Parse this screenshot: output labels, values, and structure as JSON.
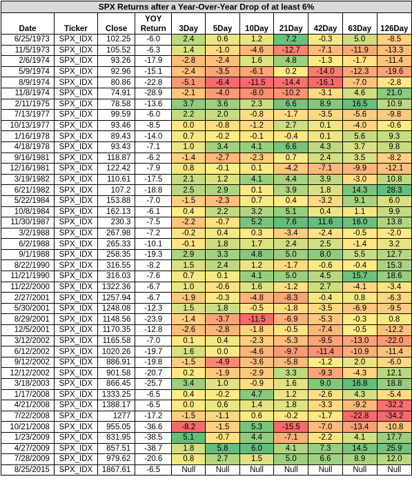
{
  "title": "SPX Returns after a Year-Over-Year Drop of at least 6%",
  "headers": [
    "Date",
    "Ticker",
    "Close",
    "YOY Return",
    "3Day",
    "5Day",
    "10Day",
    "21Day",
    "42Day",
    "63Day",
    "126Day"
  ],
  "rows": [
    [
      "6/25/1973",
      "SPX_IDX",
      "102.25",
      "-6.0",
      "2.4",
      "0.6",
      "1.2",
      "7.2",
      "-0.3",
      "5.0",
      "-8.5"
    ],
    [
      "11/5/1973",
      "SPX_IDX",
      "105.52",
      "-6.3",
      "1.4",
      "-1.0",
      "-4.6",
      "-12.7",
      "-7.1",
      "-11.9",
      "-13.3"
    ],
    [
      "2/6/1974",
      "SPX_IDX",
      "93.26",
      "-17.9",
      "-2.8",
      "-2.4",
      "1.6",
      "4.8",
      "-1.3",
      "-1.7",
      "-11.4"
    ],
    [
      "5/9/1974",
      "SPX_IDX",
      "92.96",
      "-15.1",
      "-2.4",
      "-3.5",
      "-6.1",
      "0.2",
      "-14.0",
      "-12.3",
      "-19.6"
    ],
    [
      "8/9/1974",
      "SPX_IDX",
      "80.86",
      "-22.8",
      "-5.1",
      "-6.4",
      "-11.5",
      "-14.4",
      "-16.1",
      "-7.0",
      "-2.8"
    ],
    [
      "11/8/1974",
      "SPX_IDX",
      "74.91",
      "-28.9",
      "-2.1",
      "-4.0",
      "-8.0",
      "-10.2",
      "-3.1",
      "4.6",
      "21.0"
    ],
    [
      "2/11/1975",
      "SPX_IDX",
      "78.58",
      "-13.6",
      "3.7",
      "3.6",
      "2.3",
      "6.6",
      "8.9",
      "16.5",
      "10.9"
    ],
    [
      "7/13/1977",
      "SPX_IDX",
      "99.59",
      "-6.0",
      "2.2",
      "2.0",
      "-0.8",
      "-1.7",
      "-3.5",
      "-5.6",
      "-9.8"
    ],
    [
      "10/13/1977",
      "SPX_IDX",
      "93.46",
      "-8.5",
      "0.0",
      "-0.8",
      "-1.2",
      "2.7",
      "0.1",
      "-4.0",
      "-0.6"
    ],
    [
      "1/16/1978",
      "SPX_IDX",
      "89.43",
      "-14.0",
      "0.7",
      "-0.2",
      "-0.1",
      "-0.4",
      "0.1",
      "5.6",
      "9.3"
    ],
    [
      "4/18/1978",
      "SPX_IDX",
      "93.43",
      "-7.1",
      "1.0",
      "3.4",
      "4.1",
      "6.6",
      "4.3",
      "3.7",
      "9.8"
    ],
    [
      "9/16/1981",
      "SPX_IDX",
      "118.87",
      "-6.2",
      "-1.4",
      "-2.7",
      "-2.3",
      "0.7",
      "2.4",
      "3.5",
      "-8.2"
    ],
    [
      "12/16/1981",
      "SPX_IDX",
      "122.42",
      "-7.9",
      "0.8",
      "-0.1",
      "0.1",
      "-4.2",
      "-7.1",
      "-9.9",
      "-12.1"
    ],
    [
      "3/19/1982",
      "SPX_IDX",
      "110.61",
      "-17.5",
      "2.1",
      "1.2",
      "4.1",
      "4.4",
      "3.9",
      "-3.0",
      "10.8"
    ],
    [
      "6/21/1982",
      "SPX_IDX",
      "107.2",
      "-18.8",
      "2.5",
      "2.9",
      "0.1",
      "3.9",
      "1.8",
      "14.3",
      "28.3"
    ],
    [
      "5/22/1984",
      "SPX_IDX",
      "153.88",
      "-7.0",
      "-1.5",
      "-2.3",
      "0.7",
      "0.4",
      "-3.2",
      "9.1",
      "6.0"
    ],
    [
      "10/8/1984",
      "SPX_IDX",
      "162.13",
      "-6.1",
      "0.4",
      "2.2",
      "3.2",
      "5.1",
      "0.4",
      "1.1",
      "9.9"
    ],
    [
      "11/30/1987",
      "SPX_IDX",
      "230.3",
      "-7.5",
      "-2.2",
      "-0.7",
      "5.2",
      "7.6",
      "11.6",
      "16.0",
      "13.8"
    ],
    [
      "3/2/1988",
      "SPX_IDX",
      "267.98",
      "-7.2",
      "-0.2",
      "0.4",
      "0.3",
      "-3.4",
      "-2.4",
      "-0.5",
      "-2.0"
    ],
    [
      "6/2/1988",
      "SPX_IDX",
      "265.33",
      "-10.1",
      "-0.1",
      "1.8",
      "1.7",
      "2.4",
      "2.5",
      "-1.4",
      "3.2"
    ],
    [
      "9/1/1988",
      "SPX_IDX",
      "258.35",
      "-19.3",
      "2.9",
      "3.3",
      "4.8",
      "5.0",
      "8.0",
      "5.5",
      "12.7"
    ],
    [
      "8/22/1990",
      "SPX_IDX",
      "316.55",
      "-8.2",
      "1.5",
      "2.4",
      "1.2",
      "-1.7",
      "-0.6",
      "-0.4",
      "15.3"
    ],
    [
      "11/21/1990",
      "SPX_IDX",
      "316.03",
      "-7.6",
      "0.7",
      "0.1",
      "4.1",
      "5.0",
      "4.5",
      "15.7",
      "18.6"
    ],
    [
      "11/22/2000",
      "SPX_IDX",
      "1322.36",
      "-6.7",
      "1.0",
      "-0.6",
      "1.6",
      "-1.2",
      "2.7",
      "-4.1",
      "-3.4"
    ],
    [
      "2/27/2001",
      "SPX_IDX",
      "1257.94",
      "-6.7",
      "-1.9",
      "-0.3",
      "-4.8",
      "-8.3",
      "-0.4",
      "0.8",
      "-6.3"
    ],
    [
      "5/30/2001",
      "SPX_IDX",
      "1248.08",
      "-12.3",
      "1.5",
      "1.8",
      "-0.5",
      "-1.8",
      "-3.5",
      "-6.9",
      "-9.5"
    ],
    [
      "8/29/2001",
      "SPX_IDX",
      "1148.56",
      "-23.9",
      "-1.4",
      "-3.7",
      "-11.5",
      "-6.9",
      "-5.3",
      "-0.3",
      "0.8"
    ],
    [
      "12/5/2001",
      "SPX_IDX",
      "1170.35",
      "-12.8",
      "-2.6",
      "-2.8",
      "-1.8",
      "-0.5",
      "-7.4",
      "-0.5",
      "-12.2"
    ],
    [
      "3/12/2002",
      "SPX_IDX",
      "1165.58",
      "-7.0",
      "0.1",
      "0.4",
      "-2.3",
      "-5.3",
      "-9.5",
      "-13.0",
      "-22.0"
    ],
    [
      "6/12/2002",
      "SPX_IDX",
      "1020.26",
      "-19.7",
      "1.6",
      "0.0",
      "-4.6",
      "-9.7",
      "-11.4",
      "-10.9",
      "-11.4"
    ],
    [
      "9/12/2002",
      "SPX_IDX",
      "886.91",
      "-19.8",
      "-1.5",
      "-4.9",
      "-3.6",
      "-5.8",
      "-1.2",
      "2.0",
      "-6.0"
    ],
    [
      "12/12/2002",
      "SPX_IDX",
      "901.58",
      "-20.7",
      "0.2",
      "-1.9",
      "-2.9",
      "3.3",
      "-9.3",
      "-4.3",
      "12.1"
    ],
    [
      "3/18/2003",
      "SPX_IDX",
      "866.45",
      "-25.7",
      "3.4",
      "1.0",
      "-0.9",
      "1.6",
      "9.0",
      "16.8",
      "18.8"
    ],
    [
      "1/17/2008",
      "SPX_IDX",
      "1333.25",
      "-6.5",
      "0.4",
      "-0.2",
      "4.7",
      "1.2",
      "-2.6",
      "4.3",
      "-5.4"
    ],
    [
      "4/21/2008",
      "SPX_IDX",
      "1388.17",
      "-6.5",
      "0.0",
      "0.6",
      "1.4",
      "1.8",
      "-3.3",
      "-9.2",
      "-32.2"
    ],
    [
      "7/22/2008",
      "SPX_IDX",
      "1277",
      "-17.2",
      "-1.5",
      "-1.1",
      "0.6",
      "-0.2",
      "-1.7",
      "-22.8",
      "-34.2"
    ],
    [
      "10/21/2008",
      "SPX_IDX",
      "955.05",
      "-36.6",
      "-8.2",
      "-1.5",
      "5.3",
      "-15.5",
      "-7.0",
      "-13.4",
      "-10.8"
    ],
    [
      "1/23/2009",
      "SPX_IDX",
      "831.95",
      "-38.5",
      "5.1",
      "-0.7",
      "4.4",
      "-7.1",
      "-2.2",
      "4.1",
      "17.7"
    ],
    [
      "4/27/2009",
      "SPX_IDX",
      "857.51",
      "-38.7",
      "1.8",
      "5.8",
      "6.0",
      "4.1",
      "7.3",
      "14.5",
      "25.9"
    ],
    [
      "7/28/2009",
      "SPX_IDX",
      "979.62",
      "-20.6",
      "0.8",
      "2.7",
      "1.5",
      "5.0",
      "6.6",
      "8.9",
      "12.0"
    ],
    [
      "8/25/2015",
      "SPX_IDX",
      "1867.61",
      "-6.5",
      "Null",
      "Null",
      "Null",
      "Null",
      "Null",
      "Null",
      "Null"
    ]
  ],
  "colors": {
    "title_band": "#d9d9d9",
    "scale_negative": "#f8696b",
    "scale_mid": "#ffeb84",
    "scale_positive": "#63be7b"
  }
}
